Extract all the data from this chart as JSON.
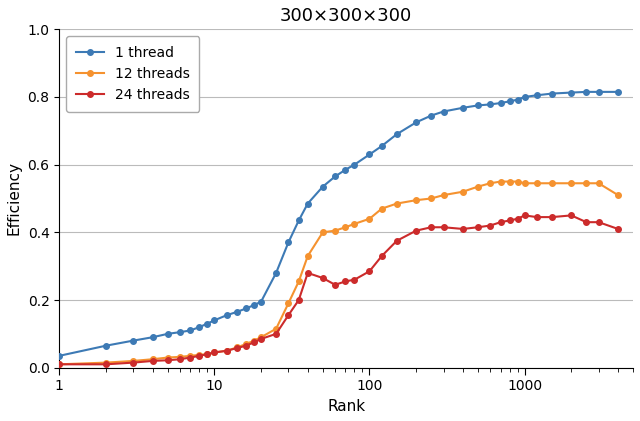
{
  "title": "300×300×300",
  "xlabel": "Rank",
  "ylabel": "Efficiency",
  "ylim": [
    0.0,
    1.0
  ],
  "series": [
    {
      "label": "1 thread",
      "color": "#3d7ab5",
      "x": [
        1,
        2,
        3,
        4,
        5,
        6,
        7,
        8,
        9,
        10,
        12,
        14,
        16,
        18,
        20,
        25,
        30,
        35,
        40,
        50,
        60,
        70,
        80,
        100,
        120,
        150,
        200,
        250,
        300,
        400,
        500,
        600,
        700,
        800,
        900,
        1000,
        1200,
        1500,
        2000,
        2500,
        3000,
        4000
      ],
      "y": [
        0.035,
        0.065,
        0.08,
        0.09,
        0.1,
        0.105,
        0.11,
        0.12,
        0.13,
        0.14,
        0.155,
        0.165,
        0.175,
        0.185,
        0.195,
        0.28,
        0.37,
        0.435,
        0.485,
        0.535,
        0.565,
        0.585,
        0.6,
        0.63,
        0.655,
        0.69,
        0.725,
        0.745,
        0.757,
        0.768,
        0.775,
        0.778,
        0.782,
        0.787,
        0.792,
        0.8,
        0.805,
        0.81,
        0.813,
        0.815,
        0.815,
        0.815
      ]
    },
    {
      "label": "12 threads",
      "color": "#f5922f",
      "x": [
        1,
        2,
        3,
        4,
        5,
        6,
        7,
        8,
        9,
        10,
        12,
        14,
        16,
        18,
        20,
        25,
        30,
        35,
        40,
        50,
        60,
        70,
        80,
        100,
        120,
        150,
        200,
        250,
        300,
        400,
        500,
        600,
        700,
        800,
        900,
        1000,
        1200,
        1500,
        2000,
        2500,
        3000,
        4000
      ],
      "y": [
        0.01,
        0.015,
        0.02,
        0.025,
        0.03,
        0.032,
        0.035,
        0.038,
        0.04,
        0.045,
        0.05,
        0.06,
        0.07,
        0.08,
        0.09,
        0.115,
        0.19,
        0.255,
        0.33,
        0.4,
        0.405,
        0.415,
        0.425,
        0.44,
        0.47,
        0.485,
        0.495,
        0.5,
        0.51,
        0.52,
        0.535,
        0.545,
        0.55,
        0.55,
        0.55,
        0.545,
        0.545,
        0.545,
        0.545,
        0.545,
        0.545,
        0.51
      ]
    },
    {
      "label": "24 threads",
      "color": "#cc2b2b",
      "x": [
        1,
        2,
        3,
        4,
        5,
        6,
        7,
        8,
        9,
        10,
        12,
        14,
        16,
        18,
        20,
        25,
        30,
        35,
        40,
        50,
        60,
        70,
        80,
        100,
        120,
        150,
        200,
        250,
        300,
        400,
        500,
        600,
        700,
        800,
        900,
        1000,
        1200,
        1500,
        2000,
        2500,
        3000,
        4000
      ],
      "y": [
        0.01,
        0.01,
        0.015,
        0.02,
        0.022,
        0.025,
        0.03,
        0.035,
        0.04,
        0.045,
        0.05,
        0.058,
        0.065,
        0.075,
        0.085,
        0.1,
        0.155,
        0.2,
        0.28,
        0.265,
        0.245,
        0.255,
        0.26,
        0.285,
        0.33,
        0.375,
        0.405,
        0.415,
        0.415,
        0.41,
        0.415,
        0.42,
        0.43,
        0.435,
        0.44,
        0.45,
        0.445,
        0.445,
        0.45,
        0.43,
        0.43,
        0.41
      ]
    }
  ],
  "grid_color": "#bbbbbb",
  "title_fontsize": 13,
  "label_fontsize": 11,
  "legend_fontsize": 10,
  "markersize": 4,
  "linewidth": 1.5
}
